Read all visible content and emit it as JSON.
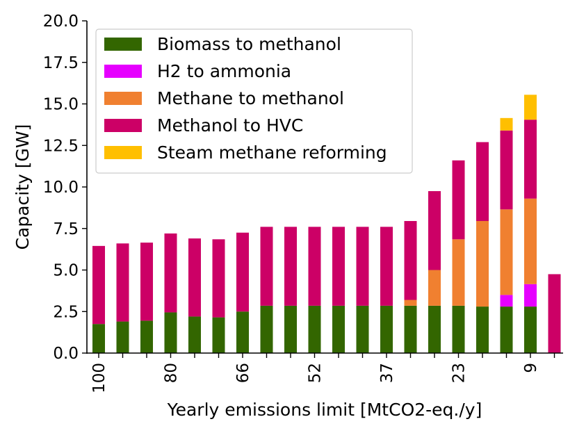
{
  "chart_data": {
    "type": "bar",
    "stacked": true,
    "title": "",
    "xlabel": "Yearly emissions limit [MtCO2-eq./y]",
    "ylabel": "Capacity [GW]",
    "ylim": [
      0,
      20
    ],
    "yticks": [
      "0.0",
      "2.5",
      "5.0",
      "7.5",
      "10.0",
      "12.5",
      "15.0",
      "17.5",
      "20.0"
    ],
    "ytick_values": [
      0,
      2.5,
      5,
      7.5,
      10,
      12.5,
      15,
      17.5,
      20
    ],
    "grid": false,
    "legend_position": "top-left",
    "categories": [
      "100",
      "",
      "",
      "80",
      "",
      "",
      "66",
      "",
      "",
      "52",
      "",
      "",
      "37",
      "",
      "",
      "23",
      "",
      "",
      "9",
      ""
    ],
    "xtick_labels": [
      {
        "index": 0,
        "label": "100"
      },
      {
        "index": 3,
        "label": "80"
      },
      {
        "index": 6,
        "label": "66"
      },
      {
        "index": 9,
        "label": "52"
      },
      {
        "index": 12,
        "label": "37"
      },
      {
        "index": 15,
        "label": "23"
      },
      {
        "index": 18,
        "label": "9"
      }
    ],
    "series": [
      {
        "name": "Biomass to methanol",
        "color": "#336600",
        "values": [
          1.75,
          1.9,
          1.95,
          2.45,
          2.2,
          2.15,
          2.5,
          2.85,
          2.85,
          2.85,
          2.85,
          2.85,
          2.85,
          2.85,
          2.85,
          2.85,
          2.8,
          2.8,
          2.8,
          0
        ]
      },
      {
        "name": "H2 to ammonia",
        "color": "#e600ff",
        "values": [
          0,
          0,
          0,
          0,
          0,
          0,
          0,
          0,
          0,
          0,
          0,
          0,
          0,
          0,
          0,
          0,
          0,
          0.7,
          1.35,
          0
        ]
      },
      {
        "name": "Methane to methanol",
        "color": "#f08030",
        "values": [
          0,
          0,
          0,
          0,
          0,
          0,
          0,
          0,
          0,
          0,
          0,
          0,
          0,
          0.35,
          2.15,
          4.0,
          5.15,
          5.15,
          5.15,
          0
        ]
      },
      {
        "name": "Methanol to HVC",
        "color": "#cc0066",
        "values": [
          4.7,
          4.7,
          4.7,
          4.75,
          4.7,
          4.7,
          4.75,
          4.75,
          4.75,
          4.75,
          4.75,
          4.75,
          4.75,
          4.75,
          4.75,
          4.75,
          4.75,
          4.75,
          4.75,
          4.75
        ]
      },
      {
        "name": "Steam methane reforming",
        "color": "#ffbf00",
        "values": [
          0,
          0,
          0,
          0,
          0,
          0,
          0,
          0,
          0,
          0,
          0,
          0,
          0,
          0,
          0,
          0,
          0,
          0.75,
          1.5,
          0
        ]
      }
    ]
  }
}
